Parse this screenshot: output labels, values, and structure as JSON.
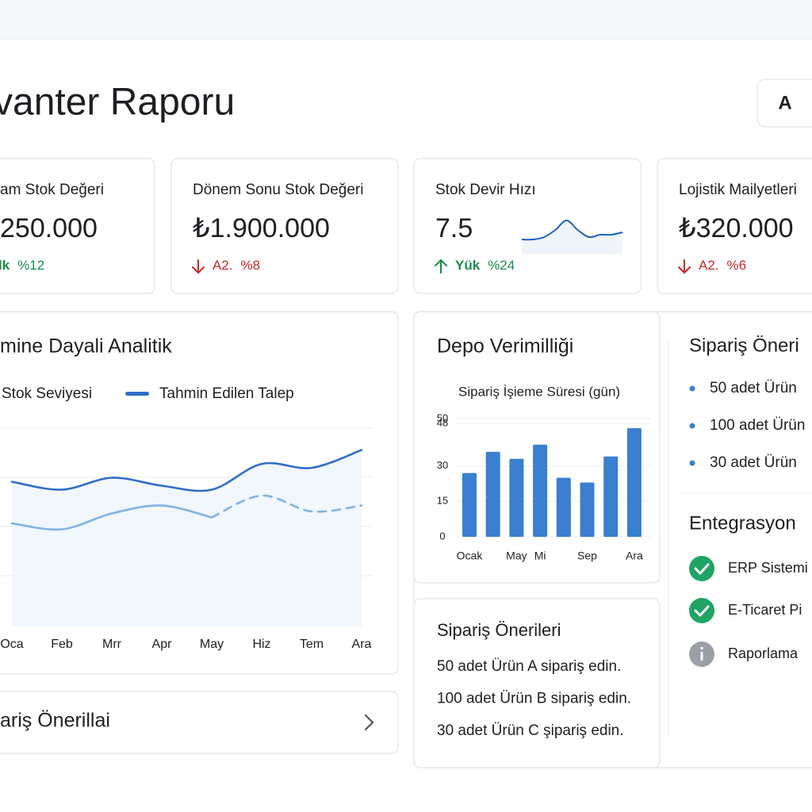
{
  "header": {
    "title": "vanter Raporu",
    "button": "A"
  },
  "kpis": [
    {
      "label": "am Stok Değeri",
      "value": "250.000",
      "trend": "up",
      "change_label": "lk",
      "change_value": "%12"
    },
    {
      "label": "Dönem Sonu Stok Değeri",
      "value": "₺1.900.000",
      "trend": "down",
      "change_label": "A2.",
      "change_value": "%8"
    },
    {
      "label": "Stok Devir Hızı",
      "value": "7.5",
      "trend": "up",
      "change_label": "Yük",
      "change_value": "%24"
    },
    {
      "label": "Lojistik Mailyetleri",
      "value": "₺320.000",
      "trend": "down",
      "change_label": "A2.",
      "change_value": "%6"
    }
  ],
  "sparkline": {
    "type": "line",
    "values": [
      1,
      1,
      2,
      5,
      9,
      5,
      2,
      3,
      3,
      4
    ],
    "ylim": [
      0,
      10
    ],
    "color": "#1f5fbf"
  },
  "line_chart": {
    "type": "line",
    "title": "mine Dayali Analitik",
    "categories": [
      "Oca",
      "Feb",
      "Mrr",
      "Apr",
      "May",
      "Hiz",
      "Tem",
      "Ara"
    ],
    "series": [
      {
        "name": "Stok Seviyesi",
        "color": "#7fb2e5",
        "values": [
          52,
          49,
          57,
          61,
          55,
          66,
          58,
          61
        ],
        "dashed_from": 4
      },
      {
        "name": "Tahmin Edilen Talep",
        "color": "#2f6fc6",
        "values": [
          73,
          69,
          75,
          71,
          69,
          82,
          80,
          89
        ]
      }
    ],
    "ylim": [
      0,
      100
    ]
  },
  "bar_chart": {
    "type": "bar",
    "title": "Depo Verimilliği",
    "subtitle": "Sipariş İşieme Süresi (gün)",
    "categories": [
      "Ocak",
      null,
      "May",
      "Mi",
      null,
      "Sep",
      null,
      "Ara"
    ],
    "values": [
      27,
      36,
      33,
      39,
      25,
      23,
      34,
      46
    ],
    "color": "#3a7fd0",
    "ylim": [
      0,
      50
    ],
    "yticks": [
      0,
      15,
      30,
      48,
      50
    ],
    "grid": true
  },
  "orders_card": {
    "title": "Sipariş Önerileri",
    "items": [
      "50 adet Ürün A  sipariş edin.",
      "100 adet Ürün B sipariş edin.",
      "30 adet Ürün C şipariş edin."
    ]
  },
  "collapsed_card": {
    "title": "ariş Önerillai"
  },
  "side_orders": {
    "title": "Sipariş Öneri",
    "items": [
      "50 adet Ürün",
      "100 adet Ürün",
      "30 adet Ürün"
    ]
  },
  "integrations": {
    "title": "Entegrasyon",
    "items": [
      {
        "name": "ERP Sistemi",
        "status": "ok"
      },
      {
        "name": "E-Ticaret Pi",
        "status": "ok"
      },
      {
        "name": "Raporlama",
        "status": "info"
      }
    ]
  }
}
